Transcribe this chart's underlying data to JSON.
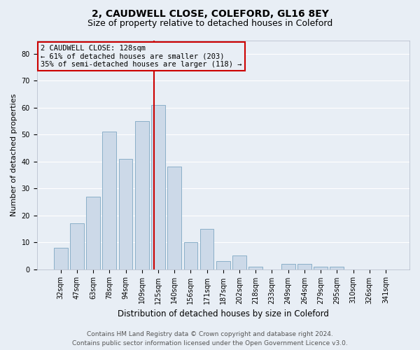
{
  "title1": "2, CAUDWELL CLOSE, COLEFORD, GL16 8EY",
  "title2": "Size of property relative to detached houses in Coleford",
  "xlabel": "Distribution of detached houses by size in Coleford",
  "ylabel": "Number of detached properties",
  "categories": [
    "32sqm",
    "47sqm",
    "63sqm",
    "78sqm",
    "94sqm",
    "109sqm",
    "125sqm",
    "140sqm",
    "156sqm",
    "171sqm",
    "187sqm",
    "202sqm",
    "218sqm",
    "233sqm",
    "249sqm",
    "264sqm",
    "279sqm",
    "295sqm",
    "310sqm",
    "326sqm",
    "341sqm"
  ],
  "values": [
    8,
    17,
    27,
    51,
    41,
    55,
    61,
    38,
    10,
    15,
    3,
    5,
    1,
    0,
    2,
    2,
    1,
    1,
    0,
    0,
    0
  ],
  "bar_color": "#ccd9e8",
  "bar_edge_color": "#8aafc8",
  "bg_color": "#e8eef5",
  "grid_color": "#ffffff",
  "annotation_line1": "2 CAUDWELL CLOSE: 128sqm",
  "annotation_line2": "← 61% of detached houses are smaller (203)",
  "annotation_line3": "35% of semi-detached houses are larger (118) →",
  "annotation_box_color": "#cc0000",
  "vline_color": "#cc0000",
  "ylim": [
    0,
    85
  ],
  "yticks": [
    0,
    10,
    20,
    30,
    40,
    50,
    60,
    70,
    80
  ],
  "footer1": "Contains HM Land Registry data © Crown copyright and database right 2024.",
  "footer2": "Contains public sector information licensed under the Open Government Licence v3.0.",
  "title1_fontsize": 10,
  "title2_fontsize": 9,
  "xlabel_fontsize": 8.5,
  "ylabel_fontsize": 8,
  "tick_fontsize": 7,
  "footer_fontsize": 6.5,
  "ann_fontsize": 7.5
}
